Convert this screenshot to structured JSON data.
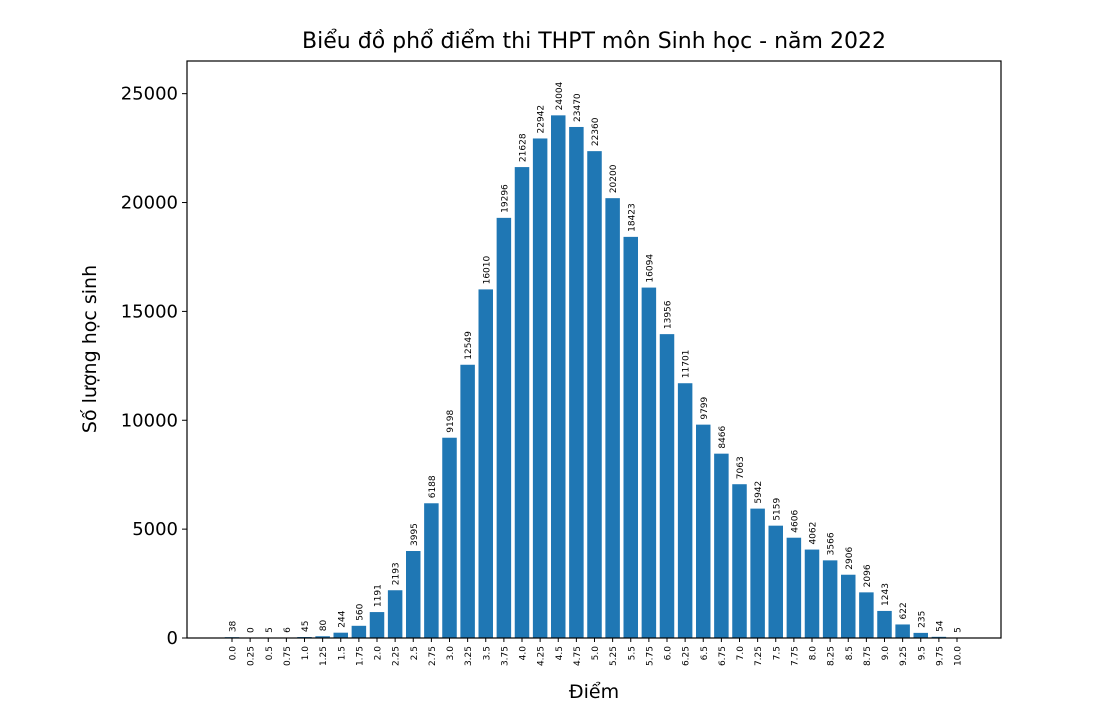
{
  "chart_data": {
    "type": "bar",
    "title": "Biểu đồ phổ điểm thi THPT môn Sinh học - năm 2022",
    "xlabel": "Điểm",
    "ylabel": "Số lượng học sinh",
    "ylim": [
      0,
      26500
    ],
    "yticks": [
      0,
      5000,
      10000,
      15000,
      20000,
      25000
    ],
    "grid": false,
    "bar_color": "#1f77b4",
    "categories": [
      "0.0",
      "0.25",
      "0.5",
      "0.75",
      "1.0",
      "1.25",
      "1.5",
      "1.75",
      "2.0",
      "2.25",
      "2.5",
      "2.75",
      "3.0",
      "3.25",
      "3.5",
      "3.75",
      "4.0",
      "4.25",
      "4.5",
      "4.75",
      "5.0",
      "5.25",
      "5.5",
      "5.75",
      "6.0",
      "6.25",
      "6.5",
      "6.75",
      "7.0",
      "7.25",
      "7.5",
      "7.75",
      "8.0",
      "8.25",
      "8.5",
      "8.75",
      "9.0",
      "9.25",
      "9.5",
      "9.75",
      "10.0"
    ],
    "values": [
      38,
      0,
      5,
      6,
      45,
      80,
      244,
      560,
      1191,
      2193,
      3995,
      6188,
      9198,
      12549,
      16010,
      19296,
      21628,
      22942,
      24004,
      23470,
      22360,
      20200,
      18423,
      16094,
      13956,
      11701,
      9799,
      8466,
      7063,
      5942,
      5159,
      4606,
      4062,
      3566,
      2906,
      2096,
      1243,
      622,
      235,
      54,
      5
    ]
  }
}
